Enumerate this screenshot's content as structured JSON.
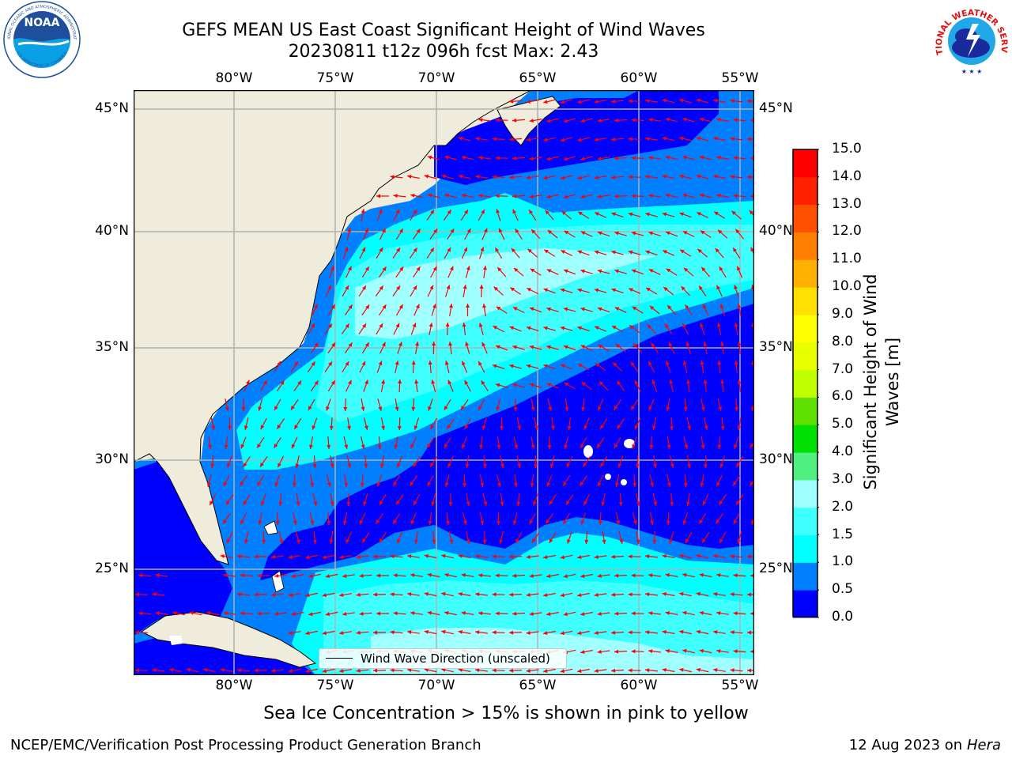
{
  "header": {
    "title": "GEFS MEAN US East Coast Significant Height of Wind Waves",
    "subtitle": "20230811 t12z 096h fcst   Max: 2.43"
  },
  "map": {
    "lon_range": [
      -85,
      -54.5
    ],
    "lat_range": [
      20.3,
      45.8
    ],
    "lon_ticks": [
      "80°W",
      "75°W",
      "70°W",
      "65°W",
      "60°W",
      "55°W"
    ],
    "lat_ticks": [
      "45°N",
      "40°N",
      "35°N",
      "30°N",
      "25°N"
    ],
    "colors": {
      "land": "#efecdc",
      "coast": "#000000",
      "grid": "#b0b0b0",
      "arrows": "#ff0000"
    }
  },
  "legend": {
    "label": "Wind Wave Direction (unscaled)"
  },
  "colorbar": {
    "label_line1": "Significant Height of Wind",
    "label_line2": "Waves [m]",
    "levels": [
      "0.0",
      "0.5",
      "1.0",
      "1.5",
      "2.0",
      "3.0",
      "4.0",
      "5.0",
      "6.0",
      "7.0",
      "8.0",
      "9.0",
      "10.0",
      "11.0",
      "12.0",
      "13.0",
      "14.0",
      "15.0"
    ],
    "colors": [
      "#0000ff",
      "#0080ff",
      "#00ffff",
      "#40ffff",
      "#a0ffff",
      "#50f080",
      "#00e000",
      "#60e000",
      "#c0ff00",
      "#e8ff00",
      "#ffff00",
      "#ffe000",
      "#ffb000",
      "#ff8000",
      "#ff5000",
      "#ff2000",
      "#ff0000"
    ]
  },
  "footer": {
    "ice_note": "Sea Ice Concentration > 15% is shown in pink to yellow",
    "credit": "NCEP/EMC/Verification Post Processing Product Generation Branch",
    "date": "12 Aug 2023 on",
    "host": "Hera"
  },
  "logos": {
    "noaa_text": "NOAA",
    "noaa_ring_top": "NATIONAL OCEANIC AND ATMOSPHERIC ADMINISTRATION",
    "noaa_ring_bottom": "U.S. DEPARTMENT OF COMMERCE",
    "nws_ring": "NATIONAL WEATHER SERVICE"
  }
}
